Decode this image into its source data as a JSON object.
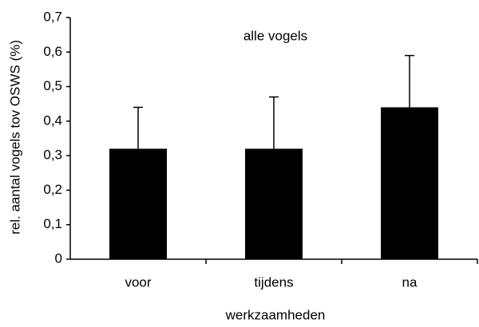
{
  "chart_data": {
    "type": "bar",
    "title": "alle vogels",
    "x_label": "werkzaamheden",
    "y_label": "rel. aantal vogels tov OSWS (%)",
    "categories": [
      "voor",
      "tijdens",
      "na"
    ],
    "values": [
      0.32,
      0.32,
      0.44
    ],
    "errors": [
      0.12,
      0.15,
      0.15
    ],
    "color": "#000000",
    "ylim": [
      0,
      0.7
    ],
    "yticks": [
      0,
      {
        "value": 0.1,
        "label": "0,1"
      },
      {
        "value": 0.2,
        "label": "0,2"
      },
      {
        "value": 0.3,
        "label": "0,3"
      },
      {
        "value": 0.4,
        "label": "0,4"
      },
      {
        "value": 0.5,
        "label": "0,5"
      },
      {
        "value": 0.6,
        "label": "0,6"
      },
      {
        "value": 0.7,
        "label": "0,7"
      }
    ],
    "grid": false
  }
}
